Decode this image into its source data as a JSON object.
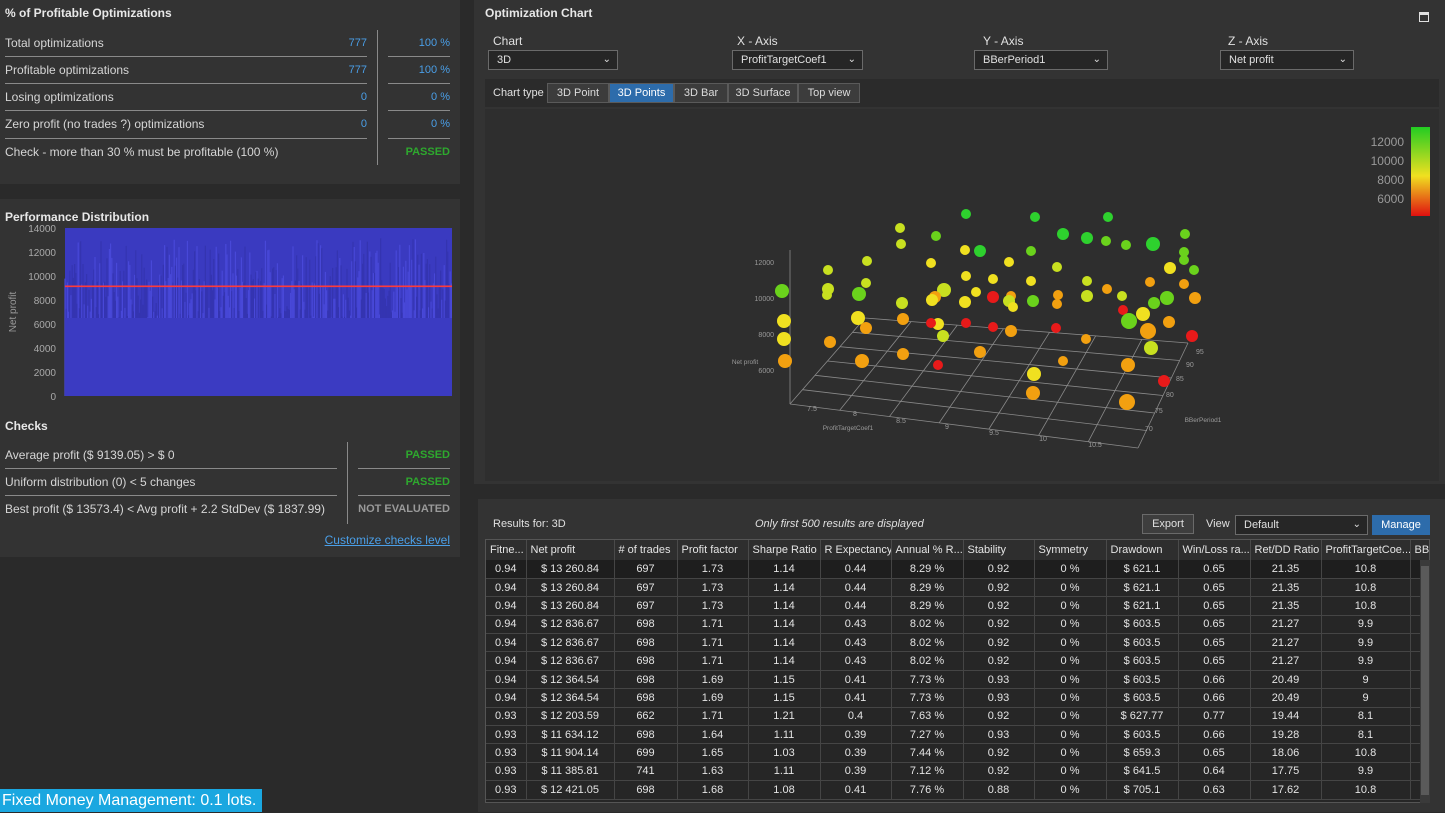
{
  "profitable": {
    "title": "% of Profitable Optimizations",
    "rows": [
      {
        "label": "Total optimizations",
        "count": "777",
        "pct": "100 %"
      },
      {
        "label": "Profitable optimizations",
        "count": "777",
        "pct": "100 %"
      },
      {
        "label": "Losing optimizations",
        "count": "0",
        "pct": "0 %"
      },
      {
        "label": "Zero profit (no trades ?) optimizations",
        "count": "0",
        "pct": "0 %"
      }
    ],
    "check_label": "Check - more than 30 % must be profitable (100 %)",
    "check_result": "PASSED"
  },
  "performance": {
    "title": "Performance Distribution",
    "ylabel": "Net profit",
    "yticks": [
      "14000",
      "12000",
      "10000",
      "8000",
      "6000",
      "4000",
      "2000",
      "0"
    ],
    "avg_line": 9139.05,
    "ylim": [
      0,
      14000
    ]
  },
  "checks": {
    "title": "Checks",
    "rows": [
      {
        "label": "Average profit ($ 9139.05) > $ 0",
        "result": "PASSED"
      },
      {
        "label": "Uniform distribution (0) < 5 changes",
        "result": "PASSED"
      },
      {
        "label": "Best profit ($ 13573.4) < Avg profit + 2.2 StdDev ($ 1837.99)",
        "result": "NOT EVALUATED"
      }
    ],
    "customize_link": "Customize checks level"
  },
  "footer_text": "Fixed Money Management: 0.1 lots.",
  "chart_panel": {
    "title": "Optimization Chart",
    "chart_label": "Chart",
    "chart_value": "3D",
    "x_label": "X - Axis",
    "x_value": "ProfitTargetCoef1",
    "y_label": "Y - Axis",
    "y_value": "BBerPeriod1",
    "z_label": "Z - Axis",
    "z_value": "Net profit",
    "chart_type_label": "Chart type",
    "chart_types": [
      "3D Point",
      "3D Points",
      "3D Bar",
      "3D Surface",
      "Top view"
    ],
    "active_type": "3D Points",
    "legend_ticks": [
      "12000",
      "10000",
      "8000",
      "6000"
    ],
    "axis_z_label": "Net profit",
    "axis_z_ticks": [
      "12000",
      "10000",
      "8000",
      "6000"
    ],
    "axis_x_label": "ProfitTargetCoef1",
    "axis_x_ticks": [
      "7.5",
      "8",
      "8.5",
      "9",
      "9.5",
      "10",
      "10.5"
    ],
    "axis_y_label": "BBerPeriod1",
    "axis_y_ticks": [
      "70",
      "75",
      "80",
      "85",
      "90",
      "95"
    ]
  },
  "results": {
    "label": "Results for: 3D",
    "note": "Only first 500 results are displayed",
    "export_label": "Export",
    "view_label": "View",
    "view_value": "Default",
    "manage_label": "Manage",
    "columns": [
      "Fitne...",
      "Net profit",
      "# of trades",
      "Profit factor",
      "Sharpe Ratio",
      "R Expectancy",
      "Annual % R...",
      "Stability",
      "Symmetry",
      "Drawdown",
      "Win/Loss ra...",
      "Ret/DD Ratio",
      "ProfitTargetCoe...",
      "BBerP"
    ],
    "rows": [
      [
        "0.94",
        "$ 13 260.84",
        "697",
        "1.73",
        "1.14",
        "0.44",
        "8.29 %",
        "0.92",
        "0 %",
        "$ 621.1",
        "0.65",
        "21.35",
        "10.8",
        ""
      ],
      [
        "0.94",
        "$ 13 260.84",
        "697",
        "1.73",
        "1.14",
        "0.44",
        "8.29 %",
        "0.92",
        "0 %",
        "$ 621.1",
        "0.65",
        "21.35",
        "10.8",
        ""
      ],
      [
        "0.94",
        "$ 13 260.84",
        "697",
        "1.73",
        "1.14",
        "0.44",
        "8.29 %",
        "0.92",
        "0 %",
        "$ 621.1",
        "0.65",
        "21.35",
        "10.8",
        ""
      ],
      [
        "0.94",
        "$ 12 836.67",
        "698",
        "1.71",
        "1.14",
        "0.43",
        "8.02 %",
        "0.92",
        "0 %",
        "$ 603.5",
        "0.65",
        "21.27",
        "9.9",
        ""
      ],
      [
        "0.94",
        "$ 12 836.67",
        "698",
        "1.71",
        "1.14",
        "0.43",
        "8.02 %",
        "0.92",
        "0 %",
        "$ 603.5",
        "0.65",
        "21.27",
        "9.9",
        ""
      ],
      [
        "0.94",
        "$ 12 836.67",
        "698",
        "1.71",
        "1.14",
        "0.43",
        "8.02 %",
        "0.92",
        "0 %",
        "$ 603.5",
        "0.65",
        "21.27",
        "9.9",
        ""
      ],
      [
        "0.94",
        "$ 12 364.54",
        "698",
        "1.69",
        "1.15",
        "0.41",
        "7.73 %",
        "0.93",
        "0 %",
        "$ 603.5",
        "0.66",
        "20.49",
        "9",
        ""
      ],
      [
        "0.94",
        "$ 12 364.54",
        "698",
        "1.69",
        "1.15",
        "0.41",
        "7.73 %",
        "0.93",
        "0 %",
        "$ 603.5",
        "0.66",
        "20.49",
        "9",
        ""
      ],
      [
        "0.93",
        "$ 12 203.59",
        "662",
        "1.71",
        "1.21",
        "0.4",
        "7.63 %",
        "0.92",
        "0 %",
        "$ 627.77",
        "0.77",
        "19.44",
        "8.1",
        ""
      ],
      [
        "0.93",
        "$ 11 634.12",
        "698",
        "1.64",
        "1.11",
        "0.39",
        "7.27 %",
        "0.93",
        "0 %",
        "$ 603.5",
        "0.66",
        "19.28",
        "8.1",
        ""
      ],
      [
        "0.93",
        "$ 11 904.14",
        "699",
        "1.65",
        "1.03",
        "0.39",
        "7.44 %",
        "0.92",
        "0 %",
        "$ 659.3",
        "0.65",
        "18.06",
        "10.8",
        ""
      ],
      [
        "0.93",
        "$ 11 385.81",
        "741",
        "1.63",
        "1.11",
        "0.39",
        "7.12 %",
        "0.92",
        "0 %",
        "$ 641.5",
        "0.64",
        "17.75",
        "9.9",
        ""
      ],
      [
        "0.93",
        "$ 12 421.05",
        "698",
        "1.68",
        "1.08",
        "0.41",
        "7.76 %",
        "0.88",
        "0 %",
        "$ 705.1",
        "0.63",
        "17.62",
        "10.8",
        ""
      ]
    ]
  }
}
